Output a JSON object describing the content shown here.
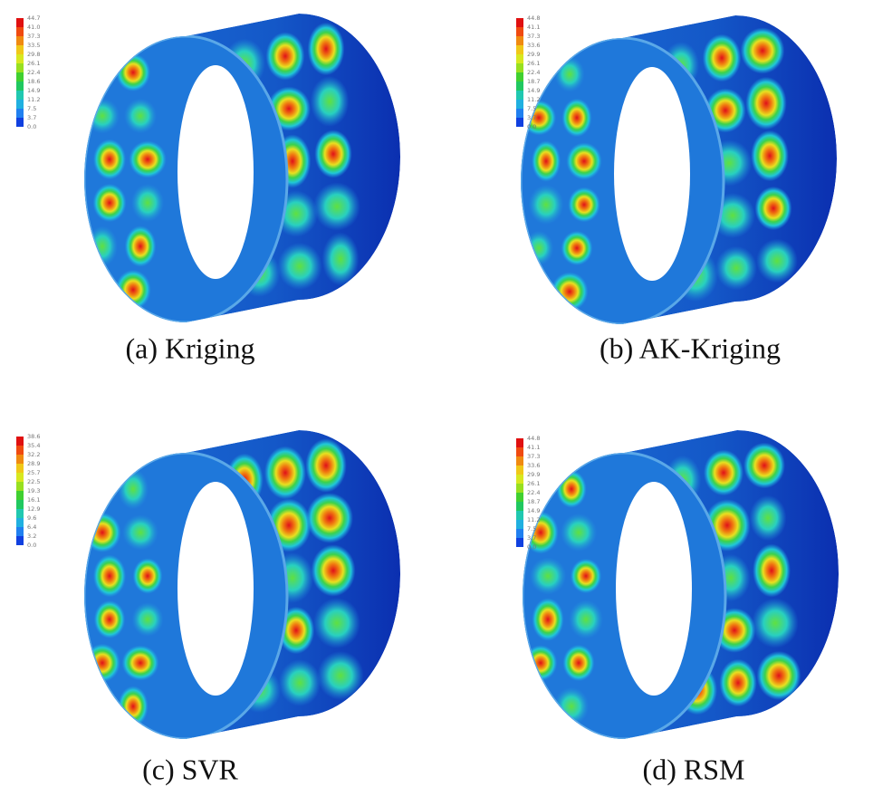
{
  "panels": [
    {
      "caption": "(a) Kriging",
      "legend": [
        "44.7",
        "41.0",
        "37.3",
        "33.5",
        "29.8",
        "26.1",
        "22.4",
        "18.6",
        "14.9",
        "11.2",
        "7.5",
        "3.7",
        "0.0"
      ]
    },
    {
      "caption": "(b) AK-Kriging",
      "legend": [
        "44.8",
        "41.1",
        "37.3",
        "33.6",
        "29.9",
        "26.1",
        "22.4",
        "18.7",
        "14.9",
        "11.2",
        "7.5",
        "3.7",
        "0.0"
      ]
    },
    {
      "caption": "(c) SVR",
      "legend": [
        "38.6",
        "35.4",
        "32.2",
        "28.9",
        "25.7",
        "22.5",
        "19.3",
        "16.1",
        "12.9",
        "9.6",
        "6.4",
        "3.2",
        "0.0"
      ]
    },
    {
      "caption": "(d) RSM",
      "legend": [
        "44.8",
        "41.1",
        "37.3",
        "33.6",
        "29.9",
        "26.1",
        "22.4",
        "18.7",
        "14.9",
        "11.2",
        "7.5",
        "3.7",
        "0.0"
      ]
    }
  ]
}
